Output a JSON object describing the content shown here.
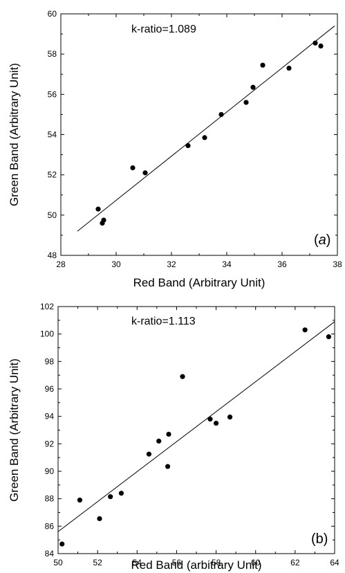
{
  "chart_data": [
    {
      "type": "scatter",
      "panel_label_prefix": "(",
      "panel_label_letter": "a",
      "panel_label_suffix": ")",
      "annotation": "k-ratio=1.089",
      "xlabel": "Red Band (Arbitrary Unit)",
      "ylabel": "Green Band (Arbitrary Unit)",
      "xlim": [
        28,
        38
      ],
      "ylim": [
        48,
        60
      ],
      "xticks": [
        28,
        30,
        32,
        34,
        36,
        38
      ],
      "yticks": [
        48,
        50,
        52,
        54,
        56,
        58,
        60
      ],
      "points": [
        {
          "x": 29.35,
          "y": 50.3
        },
        {
          "x": 29.5,
          "y": 49.6
        },
        {
          "x": 29.55,
          "y": 49.75
        },
        {
          "x": 30.6,
          "y": 52.35
        },
        {
          "x": 31.05,
          "y": 52.1
        },
        {
          "x": 32.6,
          "y": 53.45
        },
        {
          "x": 33.2,
          "y": 53.85
        },
        {
          "x": 33.8,
          "y": 55.0
        },
        {
          "x": 34.7,
          "y": 55.6
        },
        {
          "x": 34.95,
          "y": 56.35
        },
        {
          "x": 35.3,
          "y": 57.45
        },
        {
          "x": 36.25,
          "y": 57.3
        },
        {
          "x": 37.2,
          "y": 58.55
        },
        {
          "x": 37.4,
          "y": 58.4
        }
      ],
      "fit_line": [
        {
          "x": 28.6,
          "y": 49.2
        },
        {
          "x": 37.9,
          "y": 59.4
        }
      ],
      "grid": false
    },
    {
      "type": "scatter",
      "panel_label_prefix": "",
      "panel_label_letter": "(b)",
      "panel_label_suffix": "",
      "annotation": "k-ratio=1.113",
      "xlabel": "Red Band (arbitrary Unit)",
      "ylabel": "Green Band (Arbitrary Unit)",
      "xlim": [
        50,
        64
      ],
      "ylim": [
        84,
        102
      ],
      "xticks": [
        50,
        52,
        54,
        56,
        58,
        60,
        62,
        64
      ],
      "yticks": [
        84,
        86,
        88,
        90,
        92,
        94,
        96,
        98,
        100,
        102
      ],
      "points": [
        {
          "x": 50.2,
          "y": 84.7
        },
        {
          "x": 51.1,
          "y": 87.9
        },
        {
          "x": 52.1,
          "y": 86.55
        },
        {
          "x": 52.65,
          "y": 88.15
        },
        {
          "x": 53.2,
          "y": 88.4
        },
        {
          "x": 54.6,
          "y": 91.25
        },
        {
          "x": 55.1,
          "y": 92.2
        },
        {
          "x": 55.55,
          "y": 90.35
        },
        {
          "x": 55.6,
          "y": 92.7
        },
        {
          "x": 56.3,
          "y": 96.9
        },
        {
          "x": 57.7,
          "y": 93.8
        },
        {
          "x": 58.0,
          "y": 93.5
        },
        {
          "x": 58.7,
          "y": 93.95
        },
        {
          "x": 62.5,
          "y": 100.3
        },
        {
          "x": 63.7,
          "y": 99.8
        }
      ],
      "fit_line": [
        {
          "x": 50.0,
          "y": 85.6
        },
        {
          "x": 64.0,
          "y": 100.9
        }
      ],
      "grid": false
    }
  ]
}
